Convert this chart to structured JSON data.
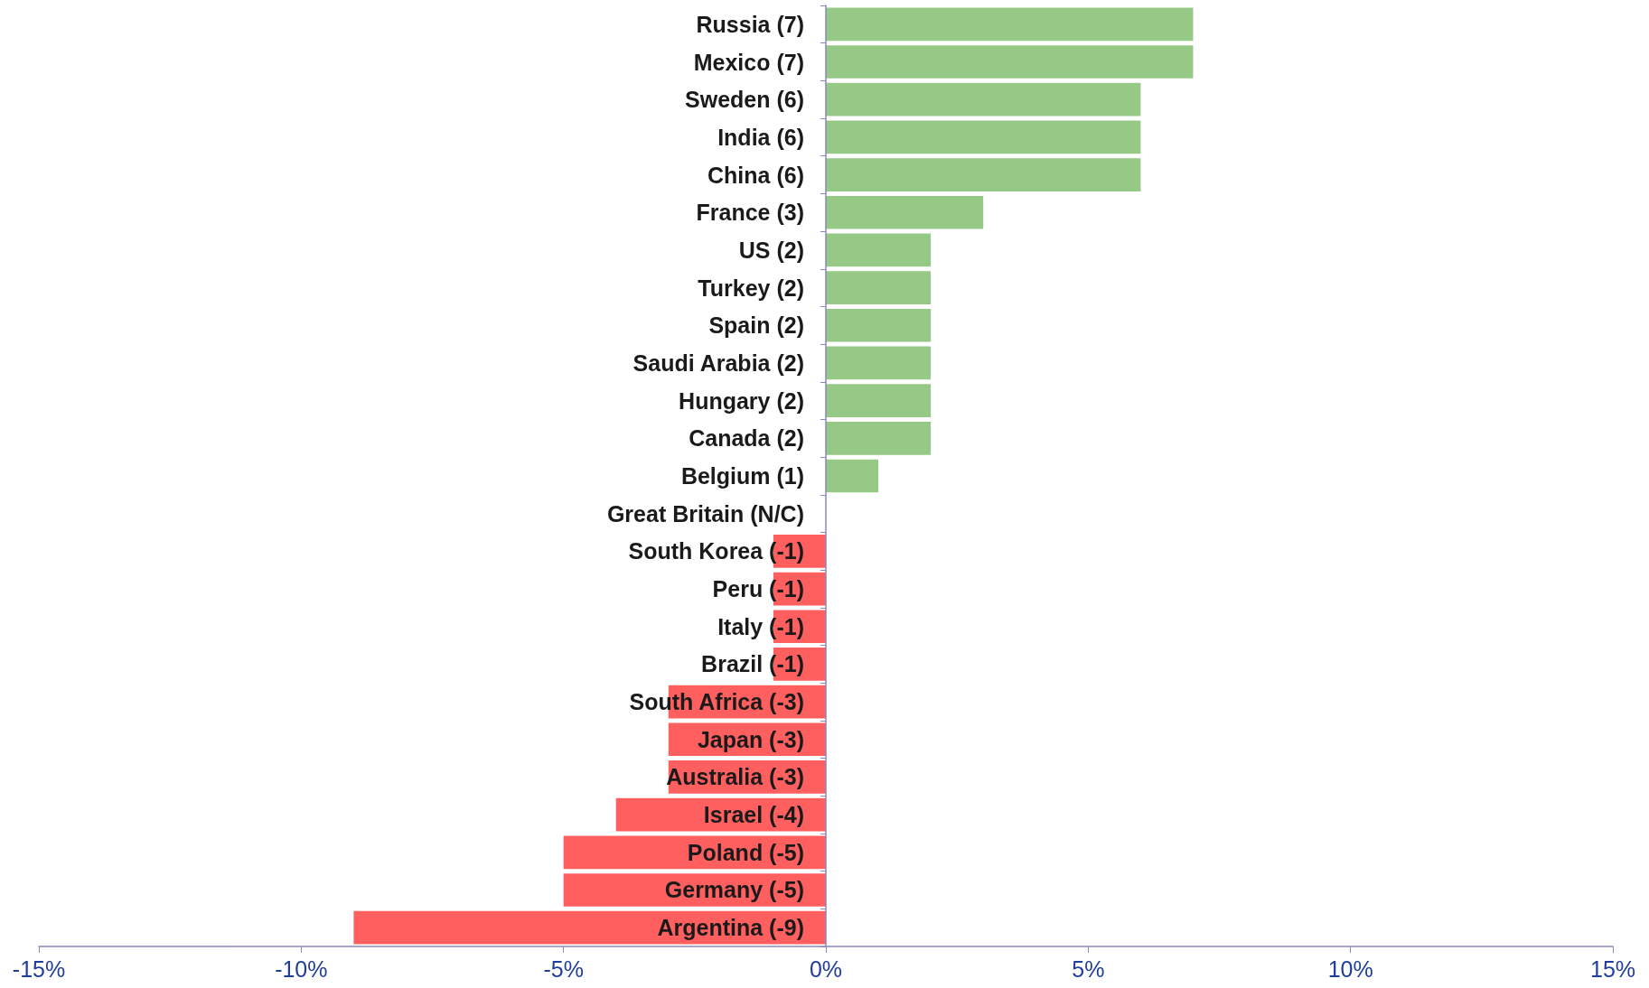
{
  "chart_data": {
    "type": "bar",
    "orientation": "horizontal",
    "categories": [
      "Russia (7)",
      "Mexico (7)",
      "Sweden (6)",
      "India (6)",
      "China (6)",
      "France (3)",
      "US (2)",
      "Turkey (2)",
      "Spain (2)",
      "Saudi Arabia (2)",
      "Hungary (2)",
      "Canada (2)",
      "Belgium (1)",
      "Great Britain (N/C)",
      "South Korea (-1)",
      "Peru (-1)",
      "Italy (-1)",
      "Brazil (-1)",
      "South Africa (-3)",
      "Japan (-3)",
      "Australia (-3)",
      "Israel (-4)",
      "Poland (-5)",
      "Germany (-5)",
      "Argentina (-9)"
    ],
    "values": [
      7,
      7,
      6,
      6,
      6,
      3,
      2,
      2,
      2,
      2,
      2,
      2,
      1,
      0,
      -1,
      -1,
      -1,
      -1,
      -3,
      -3,
      -3,
      -4,
      -5,
      -5,
      -9
    ],
    "colors": [
      "#97c986",
      "#97c986",
      "#97c986",
      "#97c986",
      "#97c986",
      "#97c986",
      "#97c986",
      "#97c986",
      "#97c986",
      "#97c986",
      "#97c986",
      "#97c986",
      "#97c986",
      "#97c986",
      "#ff5f5f",
      "#ff5f5f",
      "#ff5f5f",
      "#ff5f5f",
      "#ff5f5f",
      "#ff5f5f",
      "#ff5f5f",
      "#ff5f5f",
      "#ff5f5f",
      "#ff5f5f",
      "#ff5f5f"
    ],
    "xlim": [
      -15,
      15
    ],
    "xticks": [
      {
        "value": -15,
        "label": "-15%"
      },
      {
        "value": -10,
        "label": "-10%"
      },
      {
        "value": -5,
        "label": "-5%"
      },
      {
        "value": 0,
        "label": "0%"
      },
      {
        "value": 5,
        "label": "5%"
      },
      {
        "value": 10,
        "label": "10%"
      },
      {
        "value": 15,
        "label": "15%"
      }
    ],
    "grid": false
  }
}
